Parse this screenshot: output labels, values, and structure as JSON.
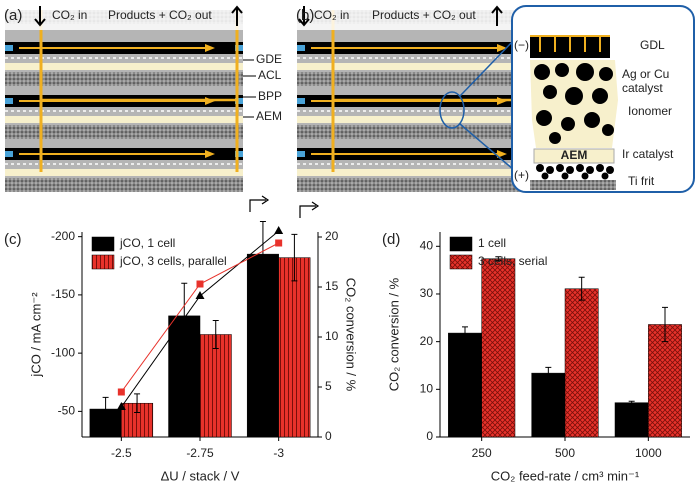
{
  "panels": {
    "a": "(a)",
    "b": "(b)",
    "c": "(c)",
    "d": "(d)"
  },
  "diagram": {
    "co2_in": "CO₂ in",
    "products_out": "Products + CO₂ out",
    "layers": [
      "GDE",
      "ACL",
      "BPP",
      "AEM"
    ],
    "inset": {
      "gdl": "GDL",
      "cathode_catalyst": [
        "Ag or Cu",
        "catalyst"
      ],
      "ionomer": "Ionomer",
      "aem": "AEM",
      "anode_catalyst": "Ir catalyst",
      "frit": "Ti frit",
      "minus": "(−)",
      "plus": "(+)"
    }
  },
  "chart_data": [
    {
      "type": "bar",
      "x_label": "ΔU / stack / V",
      "y_label": "jCO / mA cm⁻²",
      "y2_label": "CO₂ conversion / %",
      "categories": [
        "-2.5",
        "-2.75",
        "-3"
      ],
      "ylim": [
        -28,
        -204
      ],
      "yticks": [
        -50,
        -100,
        -150,
        -200
      ],
      "y2lim": [
        0,
        20.5
      ],
      "y2ticks": [
        0,
        5,
        10,
        15,
        20
      ],
      "series": [
        {
          "name": "jCO, 1 cell",
          "color": "#000000",
          "values": [
            -52,
            -132,
            -185
          ],
          "errors": [
            10,
            28,
            28
          ]
        },
        {
          "name": "jCO, 3 cells, parallel",
          "color": "#e8322b",
          "pattern": "stripes",
          "values": [
            -57,
            -116,
            -182
          ],
          "errors": [
            8,
            12,
            20
          ]
        },
        {
          "type": "line",
          "axis": "y2",
          "color": "#000000",
          "marker": "triangle",
          "values": [
            3,
            14.1,
            20.6
          ]
        },
        {
          "type": "line",
          "axis": "y2",
          "color": "#e8322b",
          "marker": "square",
          "values": [
            4.5,
            15.3,
            19.4
          ]
        }
      ]
    },
    {
      "type": "bar",
      "x_label": "CO₂ feed-rate / cm³ min⁻¹",
      "y_label": "CO₂ conversion / %",
      "categories": [
        "250",
        "500",
        "1000"
      ],
      "ylim": [
        0,
        43
      ],
      "yticks": [
        0,
        10,
        20,
        30,
        40
      ],
      "series": [
        {
          "name": "1 cell",
          "color": "#000000",
          "values": [
            21.8,
            13.4,
            7.2
          ],
          "errors": [
            1.3,
            1.2,
            0.3
          ]
        },
        {
          "name": "3 cells, serial",
          "color": "#e8322b",
          "pattern": "crosshatch",
          "values": [
            37.4,
            31.1,
            23.6
          ],
          "errors": [
            0.4,
            2.4,
            3.6
          ]
        }
      ]
    }
  ]
}
